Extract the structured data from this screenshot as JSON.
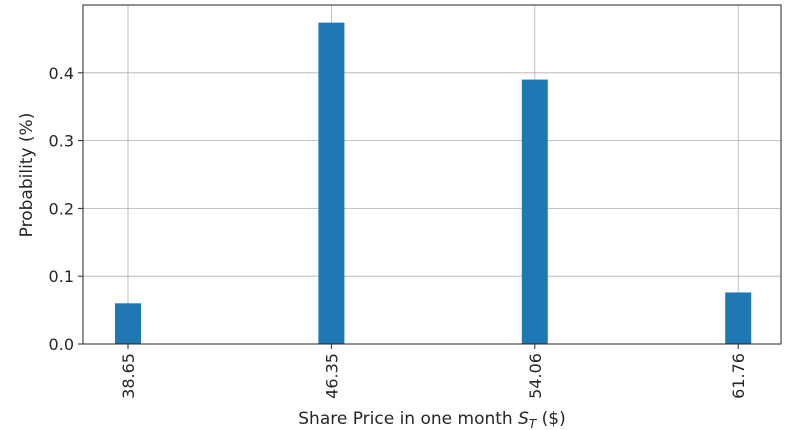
{
  "chart_data": {
    "type": "bar",
    "title": "",
    "categories": [
      "38.65",
      "46.35",
      "54.06",
      "61.76"
    ],
    "values": [
      0.06,
      0.474,
      0.39,
      0.076
    ],
    "xlabel_prefix": "Share Price in one month ",
    "xlabel_var": "S",
    "xlabel_sub": "T",
    "xlabel_suffix": " ($)",
    "ylabel": "Probability (%)",
    "ylim": [
      0,
      0.5
    ],
    "yticks": [
      "0.0",
      "0.1",
      "0.2",
      "0.3",
      "0.4"
    ],
    "ytick_values": [
      0,
      0.1,
      0.2,
      0.3,
      0.4
    ],
    "grid": true,
    "bar_color": "#1f77b4"
  }
}
